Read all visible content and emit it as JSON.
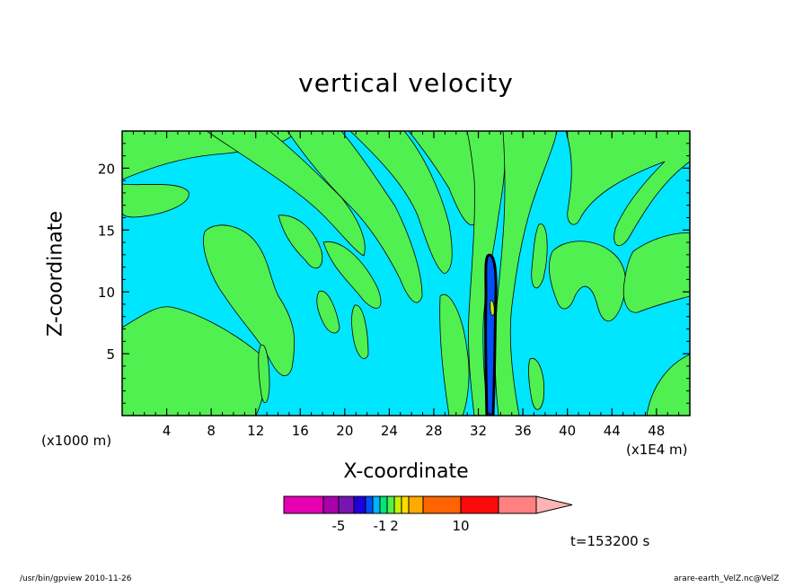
{
  "chart_data": {
    "type": "contour",
    "title": "vertical velocity",
    "xlabel": "X-coordinate",
    "ylabel": "Z-coordinate",
    "x_unit": "(x1E4 m)",
    "y_unit": "(x1000 m)",
    "xlim": [
      0,
      51
    ],
    "ylim": [
      0,
      23
    ],
    "x_ticks": [
      4,
      8,
      12,
      16,
      20,
      24,
      28,
      32,
      36,
      40,
      44,
      48
    ],
    "y_ticks": [
      5,
      10,
      15,
      20
    ],
    "time_label": "t=153200 s",
    "colorbar": {
      "colors": [
        "#e600b4",
        "#aa00aa",
        "#7814b4",
        "#1e00dc",
        "#0050ff",
        "#00b4ff",
        "#00e678",
        "#50f050",
        "#c8f000",
        "#ffdc00",
        "#ffaa00",
        "#ff6400",
        "#ff0a0a",
        "#ff8080",
        "#ffb4b4"
      ],
      "tick_labels": [
        "-5",
        "-1",
        "2",
        "10"
      ]
    },
    "fill_colors": {
      "negative": "#00e6ff",
      "positive": "#50f050",
      "strong_negative": "#0050ff",
      "strong_positive": "#c8f000"
    }
  },
  "footer": {
    "left": "/usr/bin/gpview   2010-11-26",
    "right": "arare-earth_VelZ.nc@VelZ"
  }
}
